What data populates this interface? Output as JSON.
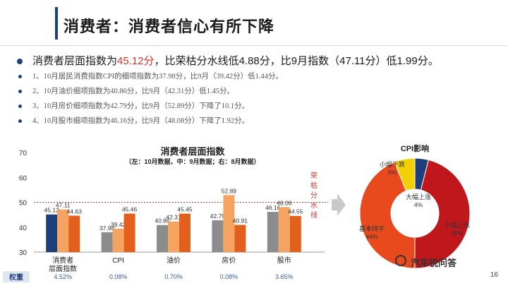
{
  "header": {
    "title": "消费者：消费者信心有所下降"
  },
  "bullets": {
    "main_prefix": "消费者层面指数为",
    "main_highlight": "45.12分",
    "main_suffix": "，比荣枯分水线低4.88分，比9月指数（47.11分）低1.99分。",
    "subs": [
      "1、10月居民消费指数CPI的细项指数为37.98分，比9月（39.42分）低1.44分。",
      "2、10月油价细项指数为40.86分，比9月（42.31分）低1.45分。",
      "3、10月房价细项指数为42.79分，比9月（52.89分）下降了10.1分。",
      "4、10月股市细项指数为46.16分，比9月（48.08分）下降了1.92分。"
    ]
  },
  "colors": {
    "oct": "#1f3f7a",
    "sep": "#f4a460",
    "aug": "#e2601c",
    "gray": "#8c8c8c",
    "threshold": "#c0392b"
  },
  "chart_data": [
    {
      "type": "bar",
      "title": "消费者层面指数",
      "subtitle": "（左：10月数据，中：9月数据；右：8月数据）",
      "categories": [
        "消费者层面指数",
        "CPI",
        "油价",
        "房价",
        "股市"
      ],
      "series": [
        {
          "values": [
            45.12,
            37.98,
            40.86,
            42.79,
            46.16
          ]
        },
        {
          "values": [
            47.11,
            39.42,
            42.31,
            52.89,
            48.08
          ]
        },
        {
          "values": [
            44.63,
            45.46,
            45.45,
            40.91,
            44.55
          ]
        }
      ],
      "ylim": [
        30,
        70
      ],
      "yticks": [
        30,
        40,
        50,
        60,
        70
      ],
      "threshold": 50,
      "threshold_label": "荣枯分水线",
      "weight_label": "权重",
      "weights": [
        "4.52%",
        "0.08%",
        "0.70%",
        "0.08%",
        "3.65%"
      ]
    },
    {
      "type": "pie",
      "title": "CPI影响",
      "slices": [
        {
          "label": "大幅上涨",
          "value": 4,
          "pct": "4%"
        },
        {
          "label": "小幅上涨",
          "value": 46,
          "pct": "46%"
        },
        {
          "label": "基本持平",
          "value": 44,
          "pct": "44%"
        },
        {
          "label": "小幅下跌",
          "value": 6,
          "pct": "6%"
        }
      ],
      "colors": [
        "#1f3f7a",
        "#c0171c",
        "#e84a1e",
        "#f5d000"
      ]
    }
  ],
  "watermark": "汽车锐问答",
  "page_number": "16"
}
